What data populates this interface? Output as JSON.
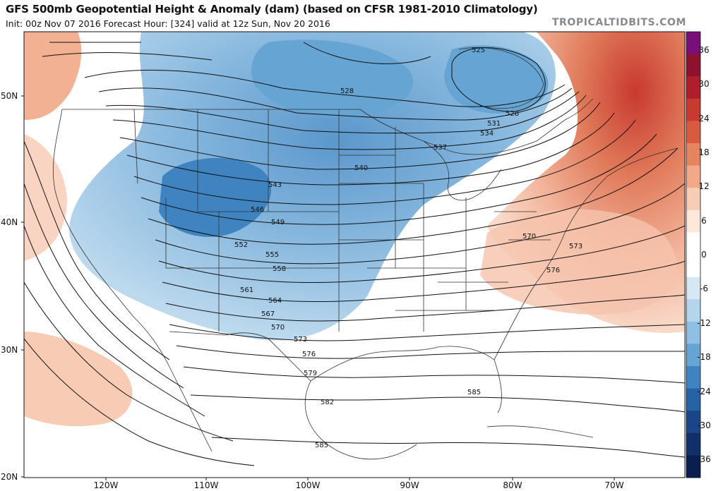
{
  "header": {
    "title": "GFS 500mb Geopotential Height & Anomaly (dam) (based on CFSR 1981-2010 Climatology)",
    "subtitle": "Init: 00z Nov 07 2016   Forecast Hour: [324]   valid at 12z Sun, Nov 20 2016",
    "brand": "TROPICALTIDBITS.COM"
  },
  "axes": {
    "latitude_labels": [
      "50N",
      "40N",
      "30N",
      "20N"
    ],
    "longitude_labels": [
      "120W",
      "110W",
      "100W",
      "90W",
      "80W",
      "70W"
    ]
  },
  "colorbar": {
    "labels": [
      "36",
      "30",
      "24",
      "18",
      "12",
      "6",
      "0",
      "-6",
      "-12",
      "-18",
      "-24",
      "-30",
      "-36"
    ],
    "colors": [
      "#7a0f7a",
      "#8e1230",
      "#b01e2c",
      "#c8392f",
      "#d95b3f",
      "#e78460",
      "#f1a98a",
      "#f8cdb8",
      "#fde8dc",
      "#ffffff",
      "#ffffff",
      "#d6e8f4",
      "#b5d5ec",
      "#8fbfe2",
      "#66a4d4",
      "#3f84c1",
      "#2563a6",
      "#1a4589",
      "#102f6b",
      "#0a1f50"
    ]
  },
  "contours": {
    "height_labels": [
      "525",
      "528",
      "528",
      "531",
      "534",
      "537",
      "540",
      "543",
      "546",
      "549",
      "552",
      "555",
      "558",
      "561",
      "564",
      "567",
      "570",
      "570",
      "573",
      "573",
      "576",
      "576",
      "579",
      "582",
      "585",
      "585"
    ]
  }
}
